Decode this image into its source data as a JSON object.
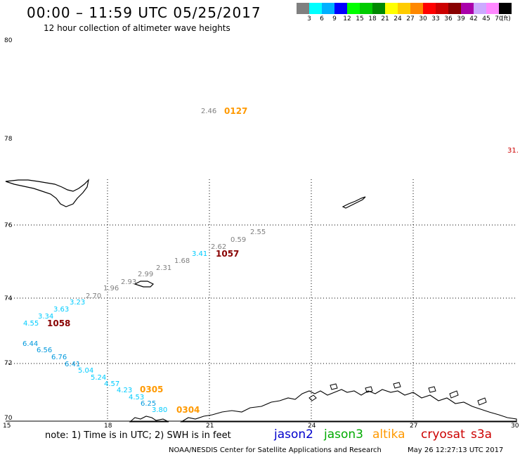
{
  "title": "00:00 – 11:59 UTC 05/25/2017",
  "subtitle": "12 hour collection of altimeter wave heights",
  "legend": {
    "unit": "(ft)",
    "colors": [
      "#808080",
      "#00ffff",
      "#00b0ff",
      "#0000ff",
      "#00ff00",
      "#00cc00",
      "#008800",
      "#ffff00",
      "#ffcc00",
      "#ff8800",
      "#ff0000",
      "#cc0000",
      "#880000",
      "#aa00aa",
      "#ccaaff",
      "#ff88ff",
      "#000000"
    ],
    "labels": [
      "3",
      "6",
      "9",
      "12",
      "15",
      "18",
      "21",
      "24",
      "27",
      "30",
      "33",
      "36",
      "39",
      "42",
      "45",
      "70"
    ]
  },
  "axes": {
    "lat_labels": [
      "80",
      "78",
      "76",
      "74",
      "72",
      "70"
    ],
    "lon_labels": [
      "15",
      "18",
      "21",
      "24",
      "27",
      "30"
    ]
  },
  "wave_values": [
    {
      "v": "2.46",
      "c": "#808080"
    },
    {
      "v": "31.",
      "c": "#cc0000"
    },
    {
      "v": "2.55",
      "c": "#808080"
    },
    {
      "v": "0.59",
      "c": "#808080"
    },
    {
      "v": "2.62",
      "c": "#808080"
    },
    {
      "v": "3.41",
      "c": "#00ccff"
    },
    {
      "v": "1.68",
      "c": "#808080"
    },
    {
      "v": "2.31",
      "c": "#808080"
    },
    {
      "v": "2.99",
      "c": "#808080"
    },
    {
      "v": "2.93",
      "c": "#808080"
    },
    {
      "v": "1.96",
      "c": "#808080"
    },
    {
      "v": "2.70",
      "c": "#808080"
    },
    {
      "v": "3.23",
      "c": "#00ccff"
    },
    {
      "v": "3.63",
      "c": "#00ccff"
    },
    {
      "v": "3.34",
      "c": "#00ccff"
    },
    {
      "v": "4.55",
      "c": "#00ccff"
    },
    {
      "v": "6.44",
      "c": "#0099dd"
    },
    {
      "v": "6.56",
      "c": "#0099dd"
    },
    {
      "v": "6.76",
      "c": "#0099dd"
    },
    {
      "v": "6.41",
      "c": "#0099dd"
    },
    {
      "v": "5.04",
      "c": "#00ccff"
    },
    {
      "v": "5.24",
      "c": "#00ccff"
    },
    {
      "v": "4.57",
      "c": "#00ccff"
    },
    {
      "v": "4.23",
      "c": "#00ccff"
    },
    {
      "v": "4.53",
      "c": "#00ccff"
    },
    {
      "v": "6.25",
      "c": "#0099dd"
    },
    {
      "v": "3.80",
      "c": "#00ccff"
    }
  ],
  "time_labels": [
    {
      "t": "0127",
      "c": "#ff9900"
    },
    {
      "t": "1057",
      "c": "#880000"
    },
    {
      "t": "1058",
      "c": "#880000"
    },
    {
      "t": "0305",
      "c": "#ff9900"
    },
    {
      "t": "0304",
      "c": "#ff9900"
    }
  ],
  "note": "note:  1) Time is in UTC;  2) SWH is in feet",
  "satellites": [
    {
      "name": "jason2",
      "color": "#0000cc"
    },
    {
      "name": "jason3",
      "color": "#00aa00"
    },
    {
      "name": "altika",
      "color": "#ff9900"
    },
    {
      "name": "cryosat",
      "color": "#cc0000"
    },
    {
      "name": "s3a",
      "color": "#cc0000"
    }
  ],
  "credit": "NOAA/NESDIS Center for Satellite Applications and Research",
  "timestamp": "May 26 12:27:13 UTC 2017"
}
